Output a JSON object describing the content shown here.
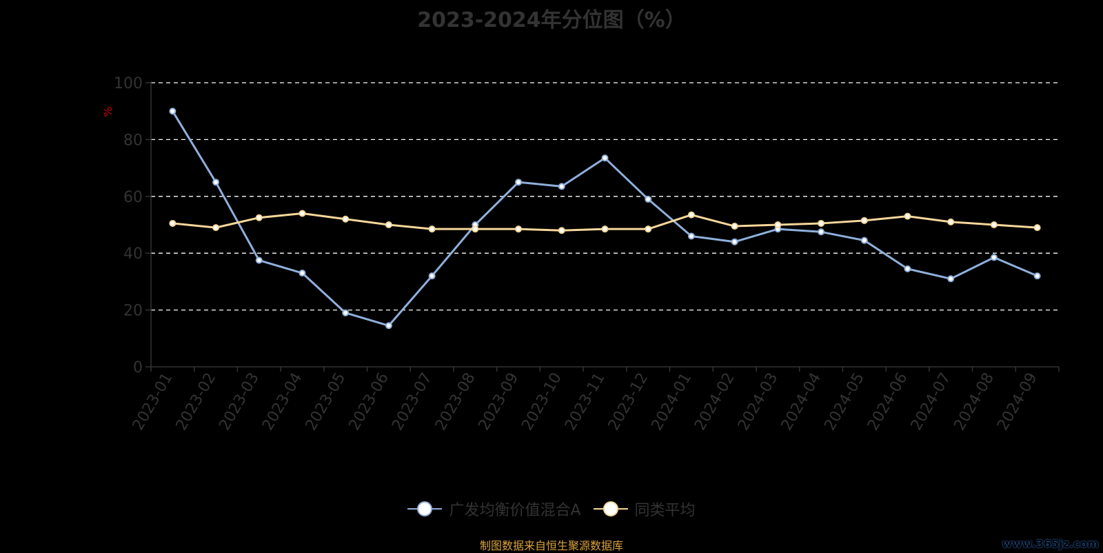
{
  "title": "2023-2024年分位图（%）",
  "source_note": "制图数据来自恒生聚源数据库",
  "watermark": "www.365jz.com",
  "colors": {
    "background": "#000000",
    "axis": "#333333",
    "grid": "#ffffff",
    "title": "#333333",
    "source_note": "#d9a23a",
    "y_unit": "#cc0000"
  },
  "chart_data": {
    "type": "line",
    "title": "2023-2024年分位图（%）",
    "ylabel": "%",
    "xlabel": "",
    "ylim": [
      0,
      100
    ],
    "yticks": [
      0,
      20,
      40,
      60,
      80,
      100
    ],
    "grid": true,
    "legend_position": "bottom",
    "categories": [
      "2023-01",
      "2023-02",
      "2023-03",
      "2023-04",
      "2023-05",
      "2023-06",
      "2023-07",
      "2023-08",
      "2023-09",
      "2023-10",
      "2023-11",
      "2023-12",
      "2024-01",
      "2024-02",
      "2024-03",
      "2024-04",
      "2024-05",
      "2024-06",
      "2024-07",
      "2024-08",
      "2024-09"
    ],
    "series": [
      {
        "name": "广发均衡价值混合A",
        "color": "#8fb0dc",
        "values": [
          90,
          65,
          37.5,
          33,
          19,
          14.5,
          32,
          50,
          65,
          63.5,
          73.5,
          59,
          46,
          44,
          48.5,
          47.5,
          44.5,
          34.5,
          31,
          38.5,
          32
        ]
      },
      {
        "name": "同类平均",
        "color": "#f7d79a",
        "values": [
          50.5,
          49,
          52.5,
          54,
          52,
          50,
          48.5,
          48.5,
          48.5,
          48,
          48.5,
          48.5,
          53.5,
          49.5,
          50,
          50.5,
          51.5,
          53,
          51,
          50,
          49
        ]
      }
    ]
  }
}
